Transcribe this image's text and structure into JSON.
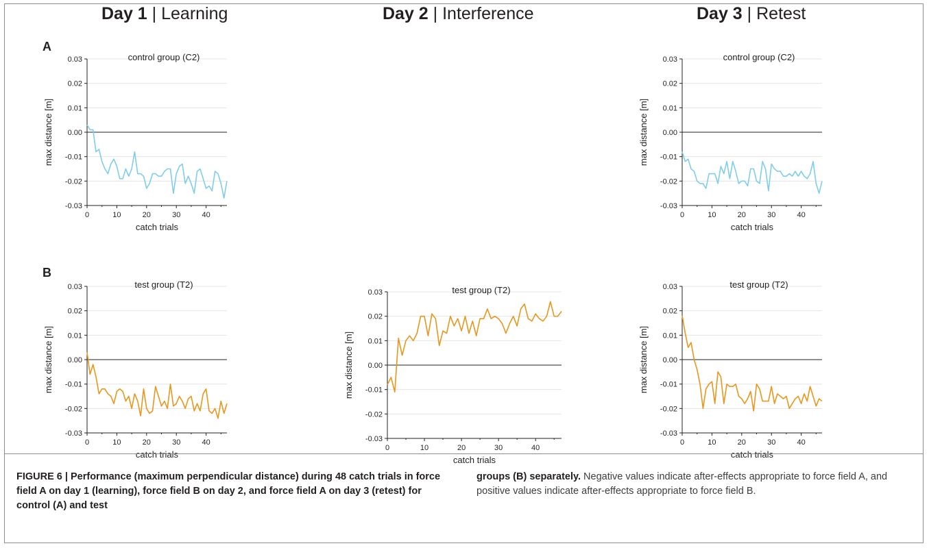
{
  "columns": [
    {
      "bold": "Day 1",
      "sep": " | ",
      "rest": "Learning"
    },
    {
      "bold": "Day 2",
      "sep": " | ",
      "rest": "Interference"
    },
    {
      "bold": "Day 3",
      "sep": " | ",
      "rest": "Retest"
    }
  ],
  "panel_letters": [
    "A",
    "B"
  ],
  "caption": {
    "left": "FIGURE 6 | Performance (maximum perpendicular distance) during 48 catch trials in force field A on day 1 (learning), force field B on day 2, and force field A on day 3 (retest) for control (A) and test",
    "right_bold": "groups (B) separately.",
    "right_rest": " Negative values indicate after-effects appropriate to force field A, and positive values indicate after-effects appropriate to force field B."
  },
  "colors": {
    "control": "#7fcdec",
    "test": "#e8961c",
    "axis": "#231f20",
    "grid": "#e4e4e4"
  },
  "chart_data": [
    {
      "id": "day1-control",
      "type": "line",
      "title": "control group (C2)",
      "xlabel": "catch trials",
      "ylabel": "max distance [m]",
      "xlim": [
        0,
        47
      ],
      "ylim": [
        -0.03,
        0.03
      ],
      "xticks": [
        0,
        10,
        20,
        30,
        40
      ],
      "yticks": [
        0.03,
        0.02,
        0.01,
        0.0,
        -0.01,
        -0.02,
        -0.03
      ],
      "ytick_labels": [
        "0.03",
        "0.02",
        "0.01",
        "0.00",
        "-0.01",
        "-0.02",
        "-0.03"
      ],
      "series": [
        {
          "color": "control",
          "y": [
            0.003,
            0.001,
            0.001,
            -0.008,
            -0.007,
            -0.012,
            -0.015,
            -0.017,
            -0.013,
            -0.011,
            -0.014,
            -0.019,
            -0.019,
            -0.015,
            -0.018,
            -0.015,
            -0.008,
            -0.017,
            -0.017,
            -0.018,
            -0.023,
            -0.021,
            -0.017,
            -0.017,
            -0.018,
            -0.018,
            -0.016,
            -0.015,
            -0.015,
            -0.025,
            -0.017,
            -0.014,
            -0.013,
            -0.021,
            -0.018,
            -0.021,
            -0.025,
            -0.016,
            -0.015,
            -0.019,
            -0.023,
            -0.022,
            -0.024,
            -0.016,
            -0.017,
            -0.021,
            -0.027,
            -0.02
          ]
        }
      ]
    },
    {
      "id": "day3-control",
      "type": "line",
      "title": "control group (C2)",
      "xlabel": "catch trials",
      "ylabel": "max distance [m]",
      "xlim": [
        0,
        47
      ],
      "ylim": [
        -0.03,
        0.03
      ],
      "xticks": [
        0,
        10,
        20,
        30,
        40
      ],
      "yticks": [
        0.03,
        0.02,
        0.01,
        0.0,
        -0.01,
        -0.02,
        -0.03
      ],
      "ytick_labels": [
        "0.03",
        "0.02",
        "0.01",
        "0.00",
        "-0.01",
        "-0.02",
        "-0.03"
      ],
      "series": [
        {
          "color": "control",
          "y": [
            -0.008,
            -0.012,
            -0.011,
            -0.015,
            -0.016,
            -0.02,
            -0.021,
            -0.021,
            -0.023,
            -0.017,
            -0.017,
            -0.017,
            -0.021,
            -0.014,
            -0.017,
            -0.012,
            -0.019,
            -0.012,
            -0.016,
            -0.021,
            -0.02,
            -0.02,
            -0.022,
            -0.015,
            -0.015,
            -0.02,
            -0.021,
            -0.012,
            -0.015,
            -0.024,
            -0.013,
            -0.015,
            -0.016,
            -0.016,
            -0.018,
            -0.018,
            -0.017,
            -0.018,
            -0.016,
            -0.018,
            -0.016,
            -0.018,
            -0.019,
            -0.017,
            -0.012,
            -0.021,
            -0.025,
            -0.02
          ]
        }
      ]
    },
    {
      "id": "day1-test",
      "type": "line",
      "title": "test group (T2)",
      "xlabel": "catch trials",
      "ylabel": "max distance [m]",
      "xlim": [
        0,
        47
      ],
      "ylim": [
        -0.03,
        0.03
      ],
      "xticks": [
        0,
        10,
        20,
        30,
        40
      ],
      "yticks": [
        0.03,
        0.02,
        0.01,
        0.0,
        -0.01,
        -0.02,
        -0.03
      ],
      "ytick_labels": [
        "0.03",
        "0.02",
        "0.01",
        "0.00",
        "-0.01",
        "-0.02",
        "-0.03"
      ],
      "series": [
        {
          "color": "test",
          "y": [
            0.003,
            -0.006,
            -0.002,
            -0.007,
            -0.014,
            -0.012,
            -0.012,
            -0.014,
            -0.015,
            -0.018,
            -0.013,
            -0.012,
            -0.013,
            -0.017,
            -0.015,
            -0.02,
            -0.014,
            -0.017,
            -0.023,
            -0.012,
            -0.02,
            -0.022,
            -0.021,
            -0.011,
            -0.015,
            -0.019,
            -0.017,
            -0.02,
            -0.01,
            -0.019,
            -0.018,
            -0.015,
            -0.017,
            -0.02,
            -0.016,
            -0.015,
            -0.021,
            -0.018,
            -0.021,
            -0.014,
            -0.012,
            -0.021,
            -0.022,
            -0.02,
            -0.024,
            -0.017,
            -0.022,
            -0.018
          ]
        }
      ]
    },
    {
      "id": "day2-test",
      "type": "line",
      "title": "test group (T2)",
      "xlabel": "catch trials",
      "ylabel": "max distance [m]",
      "xlim": [
        0,
        47
      ],
      "ylim": [
        -0.03,
        0.03
      ],
      "xticks": [
        0,
        10,
        20,
        30,
        40
      ],
      "yticks": [
        0.03,
        0.02,
        0.01,
        0.0,
        -0.01,
        -0.02,
        -0.03
      ],
      "ytick_labels": [
        "0.03",
        "0.02",
        "0.01",
        "0.00",
        "-0.01",
        "-0.02",
        "-0.03"
      ],
      "series": [
        {
          "color": "test",
          "y": [
            -0.008,
            -0.005,
            -0.011,
            0.011,
            0.004,
            0.01,
            0.012,
            0.01,
            0.013,
            0.02,
            0.02,
            0.012,
            0.021,
            0.019,
            0.008,
            0.014,
            0.013,
            0.02,
            0.016,
            0.019,
            0.014,
            0.02,
            0.013,
            0.018,
            0.012,
            0.019,
            0.019,
            0.023,
            0.019,
            0.02,
            0.019,
            0.017,
            0.013,
            0.017,
            0.02,
            0.016,
            0.023,
            0.025,
            0.019,
            0.018,
            0.021,
            0.019,
            0.018,
            0.02,
            0.026,
            0.02,
            0.02,
            0.022
          ]
        }
      ]
    },
    {
      "id": "day3-test",
      "type": "line",
      "title": "test group (T2)",
      "xlabel": "catch trials",
      "ylabel": "max distance [m]",
      "xlim": [
        0,
        47
      ],
      "ylim": [
        -0.03,
        0.03
      ],
      "xticks": [
        0,
        10,
        20,
        30,
        40
      ],
      "yticks": [
        0.03,
        0.02,
        0.01,
        0.0,
        -0.01,
        -0.02,
        -0.03
      ],
      "ytick_labels": [
        "0.03",
        "0.02",
        "0.01",
        "0.00",
        "-0.01",
        "-0.02",
        "-0.03"
      ],
      "series": [
        {
          "color": "test",
          "y": [
            0.018,
            0.011,
            0.005,
            0.007,
            0.0,
            -0.004,
            -0.01,
            -0.02,
            -0.012,
            -0.01,
            -0.009,
            -0.018,
            -0.005,
            -0.007,
            -0.018,
            -0.01,
            -0.011,
            -0.011,
            -0.01,
            -0.015,
            -0.016,
            -0.018,
            -0.016,
            -0.013,
            -0.021,
            -0.01,
            -0.012,
            -0.017,
            -0.017,
            -0.017,
            -0.011,
            -0.018,
            -0.014,
            -0.015,
            -0.016,
            -0.015,
            -0.02,
            -0.018,
            -0.016,
            -0.015,
            -0.018,
            -0.014,
            -0.017,
            -0.011,
            -0.015,
            -0.019,
            -0.016,
            -0.017
          ]
        }
      ]
    }
  ]
}
